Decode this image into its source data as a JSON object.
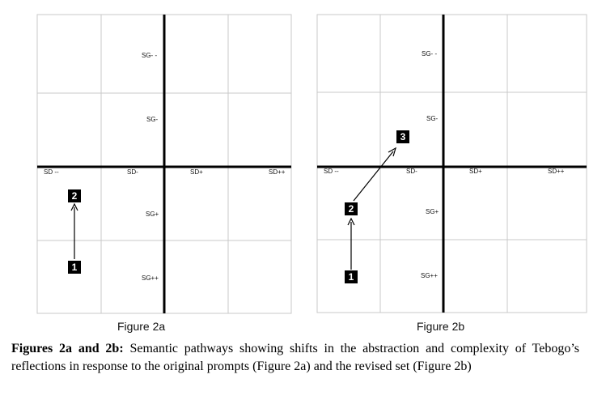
{
  "figure_a": {
    "title": "Figure 2a",
    "labels": {
      "sg_mm": "SG- -",
      "sg_m": "SG-",
      "sg_p": "SG+",
      "sg_pp": "SG++",
      "sd_mm": "SD --",
      "sd_m": "SD-",
      "sd_p": "SD+",
      "sd_pp": "SD++"
    },
    "steps": [
      "1",
      "2"
    ]
  },
  "figure_b": {
    "title": "Figure 2b",
    "labels": {
      "sg_mm": "SG- -",
      "sg_m": "SG-",
      "sg_p": "SG+",
      "sg_pp": "SG++",
      "sd_mm": "SD --",
      "sd_m": "SD-",
      "sd_p": "SD+",
      "sd_pp": "SD++"
    },
    "steps": [
      "1",
      "2",
      "3"
    ]
  },
  "caption": {
    "bold": "Figures 2a and 2b:",
    "text": " Semantic pathways showing shifts in the abstraction and complexity of Tebogo’s reflections in response to the original prompts (Figure 2a) and the revised set (Figure 2b)"
  }
}
